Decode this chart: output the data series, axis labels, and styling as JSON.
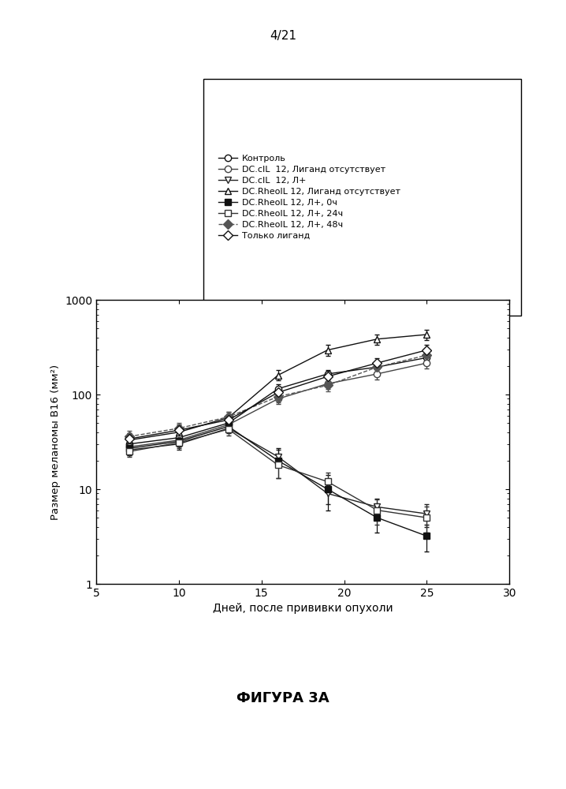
{
  "page_label": "4/21",
  "figure_label": "ФИГУРА 3А",
  "xlabel": "Дней, после прививки опухоли",
  "ylabel": "Размер меланомы В16 (мм²)",
  "xlim": [
    5,
    30
  ],
  "ylim_log": [
    1,
    1000
  ],
  "xticks": [
    5,
    10,
    15,
    20,
    25,
    30
  ],
  "series": [
    {
      "label": "Контроль",
      "marker": "o",
      "marker_filled": false,
      "linestyle": "-",
      "color": "#111111",
      "x": [
        7,
        10,
        13,
        16,
        19,
        22,
        25
      ],
      "y": [
        30,
        35,
        50,
        115,
        165,
        195,
        245
      ],
      "yerr": [
        4,
        5,
        7,
        13,
        18,
        22,
        28
      ]
    },
    {
      "label": "DC.cIL  12, Лиганд отсутствует",
      "marker": "o",
      "marker_filled": false,
      "linestyle": "-",
      "color": "#444444",
      "x": [
        7,
        10,
        13,
        16,
        19,
        22,
        25
      ],
      "y": [
        28,
        33,
        48,
        90,
        130,
        165,
        215
      ],
      "yerr": [
        4,
        5,
        7,
        11,
        16,
        20,
        26
      ]
    },
    {
      "label": "DC.cIL  12, Л+",
      "marker": "v",
      "marker_filled": false,
      "linestyle": "-",
      "color": "#222222",
      "x": [
        7,
        10,
        13,
        16,
        19,
        22,
        25
      ],
      "y": [
        26,
        30,
        44,
        22,
        9,
        6.5,
        5.5
      ],
      "yerr": [
        3,
        4,
        5,
        4,
        2,
        1.5,
        1.5
      ]
    },
    {
      "label": "DC.RheoIL 12, Лиганд отсутствует",
      "marker": "^",
      "marker_filled": false,
      "linestyle": "-",
      "color": "#111111",
      "x": [
        7,
        10,
        13,
        16,
        19,
        22,
        25
      ],
      "y": [
        33,
        40,
        57,
        160,
        295,
        385,
        430
      ],
      "yerr": [
        5,
        6,
        9,
        20,
        38,
        48,
        55
      ]
    },
    {
      "label": "DC.RheoIL 12, Л+, 0ч",
      "marker": "s",
      "marker_filled": true,
      "linestyle": "-",
      "color": "#111111",
      "x": [
        7,
        10,
        13,
        16,
        19,
        22,
        25
      ],
      "y": [
        27,
        32,
        46,
        20,
        10,
        5.0,
        3.2
      ],
      "yerr": [
        4,
        4,
        6,
        7,
        4,
        1.5,
        1.0
      ]
    },
    {
      "label": "DC.RheoIL 12, Л+, 24ч",
      "marker": "s",
      "marker_filled": false,
      "linestyle": "-",
      "color": "#333333",
      "x": [
        7,
        10,
        13,
        16,
        19,
        22,
        25
      ],
      "y": [
        25,
        31,
        43,
        18,
        12,
        6.0,
        5.0
      ],
      "yerr": [
        3,
        4,
        6,
        5,
        3,
        1.8,
        1.5
      ]
    },
    {
      "label": "DC.RheoIL 12, Л+, 48ч",
      "marker": "D",
      "marker_filled": true,
      "linestyle": "--",
      "color": "#555555",
      "x": [
        7,
        10,
        13,
        16,
        19,
        22,
        25
      ],
      "y": [
        36,
        44,
        58,
        95,
        125,
        195,
        260
      ],
      "yerr": [
        5,
        6,
        8,
        13,
        18,
        26,
        36
      ]
    },
    {
      "label": "Только лиганд",
      "marker": "D",
      "marker_filled": false,
      "linestyle": "-",
      "color": "#111111",
      "x": [
        7,
        10,
        13,
        16,
        19,
        22,
        25
      ],
      "y": [
        34,
        42,
        54,
        105,
        155,
        215,
        295
      ],
      "yerr": [
        5,
        6,
        8,
        14,
        20,
        28,
        42
      ]
    }
  ]
}
